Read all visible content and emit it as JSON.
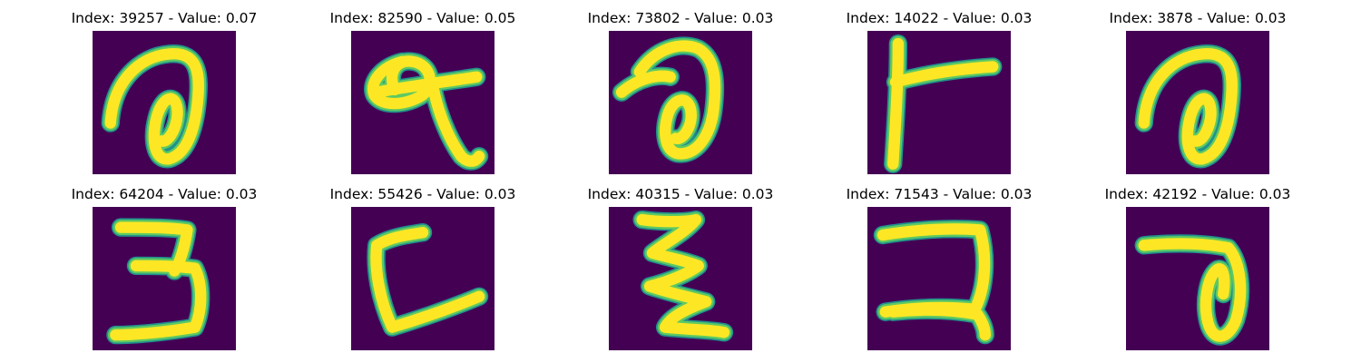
{
  "colors": {
    "background": "#440154",
    "stroke_outer": "#21918c",
    "stroke_mid": "#5ec962",
    "stroke_core": "#fde725"
  },
  "panels": [
    {
      "title": "Index: 39257 - Value: 0.07",
      "glyph": "loop-hook"
    },
    {
      "title": "Index: 82590 - Value: 0.05",
      "glyph": "loop-tail"
    },
    {
      "title": "Index: 73802 - Value: 0.03",
      "glyph": "loop-hook-small"
    },
    {
      "title": "Index: 14022 - Value: 0.03",
      "glyph": "t-shape"
    },
    {
      "title": "Index: 3878 - Value: 0.03",
      "glyph": "loop-hook"
    },
    {
      "title": "Index: 64204 - Value: 0.03",
      "glyph": "three"
    },
    {
      "title": "Index: 55426 - Value: 0.03",
      "glyph": "l-shape"
    },
    {
      "title": "Index: 40315 - Value: 0.03",
      "glyph": "zigzag"
    },
    {
      "title": "Index: 71543 - Value: 0.03",
      "glyph": "hook-bracket"
    },
    {
      "title": "Index: 42192 - Value: 0.03",
      "glyph": "t-loop"
    }
  ]
}
